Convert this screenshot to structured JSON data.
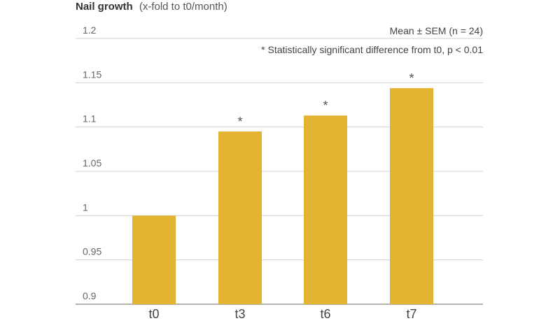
{
  "chart_data": {
    "type": "bar",
    "title": "",
    "ylabel_bold": "Nail growth",
    "ylabel_rest": "(x-fold to t0/month)",
    "xlabel": "",
    "categories": [
      "t0",
      "t3",
      "t6",
      "t7"
    ],
    "values": [
      1.0,
      1.095,
      1.113,
      1.144
    ],
    "significance": [
      "",
      "*",
      "*",
      "*"
    ],
    "ylim": [
      0.9,
      1.2
    ],
    "yticks": [
      0.9,
      0.95,
      1,
      1.05,
      1.1,
      1.15,
      1.2
    ],
    "ytick_labels": [
      "0.9",
      "0.95",
      "1",
      "1.05",
      "1.1",
      "1.15",
      "1.2"
    ],
    "grid": true,
    "bar_color": "#E3B432",
    "annotations": {
      "stats": "Mean ± SEM (n = 24)",
      "significance_note": "* Statistically significant difference from t0, p < 0.01"
    }
  }
}
